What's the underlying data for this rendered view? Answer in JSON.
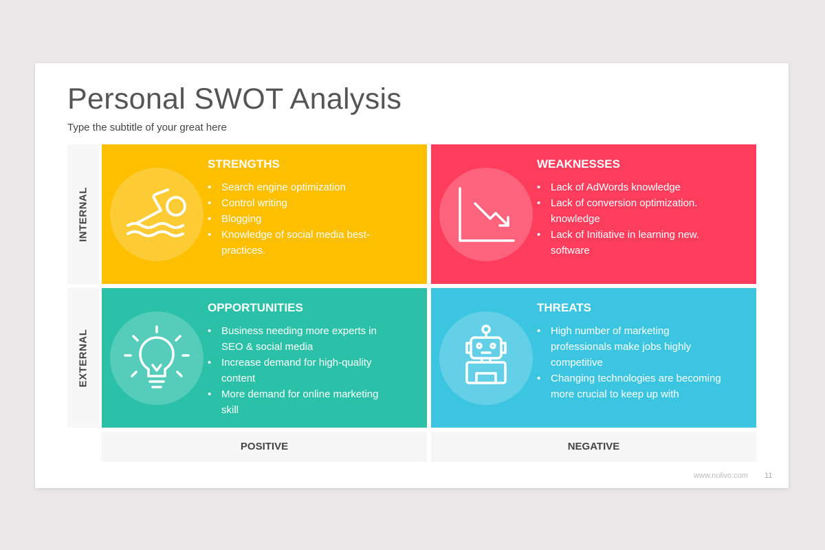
{
  "title": "Personal SWOT Analysis",
  "subtitle": "Type the subtitle of your great here",
  "rows": [
    "INTERNAL",
    "EXTERNAL"
  ],
  "columns": [
    "POSITIVE",
    "NEGATIVE"
  ],
  "quadrants": [
    {
      "title": "STRENGTHS",
      "color": "#fdbf00",
      "icon": "swimmer-icon",
      "items": [
        "Search engine optimization",
        "Control writing",
        "Blogging",
        "Knowledge of social media best-practices."
      ]
    },
    {
      "title": "WEAKNESSES",
      "color": "#fe3d5d",
      "icon": "declining-chart-icon",
      "items": [
        "Lack of AdWords knowledge",
        "Lack of conversion optimization. knowledge",
        "Lack of Initiative in learning new. software"
      ]
    },
    {
      "title": "OPPORTUNITIES",
      "color": "#2bc1a9",
      "icon": "lightbulb-icon",
      "items": [
        "Business needing more experts in SEO & social media",
        "Increase demand for high-quality content",
        "More demand for online marketing skill"
      ]
    },
    {
      "title": "THREATS",
      "color": "#3cc5e1",
      "icon": "robot-icon",
      "items": [
        "High number of marketing professionals make jobs highly competitive",
        "Changing technologies are becoming more crucial to keep up with"
      ]
    }
  ],
  "footer": {
    "website": "www.nulivo.com",
    "page": "11"
  }
}
